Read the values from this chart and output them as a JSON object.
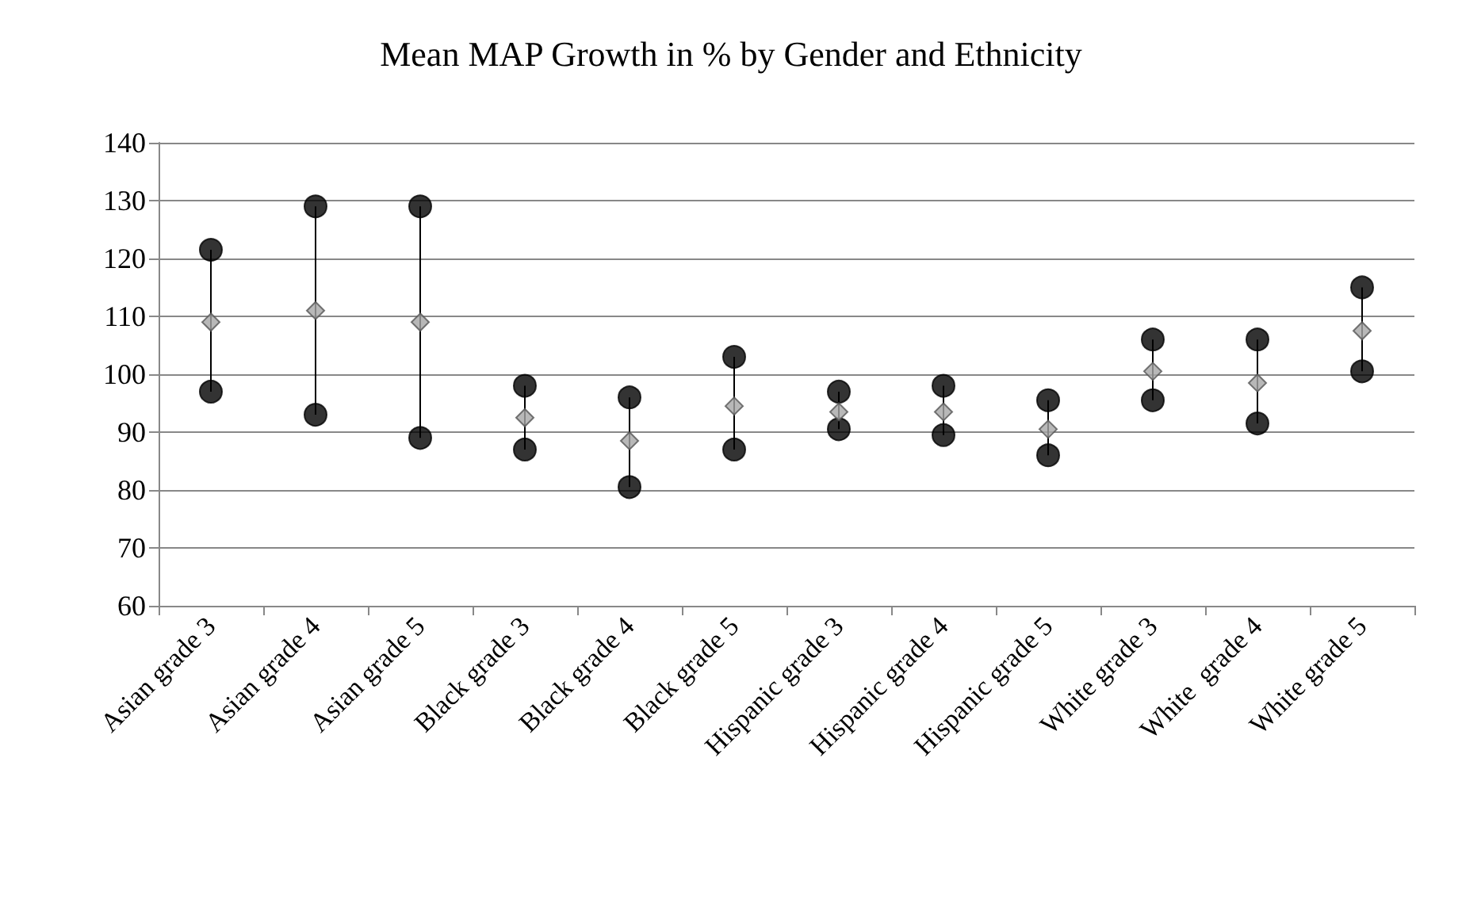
{
  "chart_data": {
    "type": "scatter",
    "title": "Mean MAP Growth in % by Gender and Ethnicity",
    "categories": [
      "Asian grade 3",
      "Asian grade 4",
      "Asian grade 5",
      "Black grade 3",
      "Black grade 4",
      "Black grade 5",
      "Hispanic grade 3",
      "Hispanic grade 4",
      "Hispanic grade 5",
      "White grade 3",
      "White  grade 4",
      "White grade 5"
    ],
    "series": [
      {
        "color": "#000000",
        "marker": "circle",
        "values": [
          121.5,
          129,
          129,
          98,
          96,
          103,
          97,
          98,
          95.5,
          106,
          106,
          115
        ]
      },
      {
        "color": "#000000",
        "marker": "circle",
        "values": [
          97,
          93,
          89,
          87,
          80.5,
          87,
          90.5,
          89.5,
          86,
          95.5,
          91.5,
          100.5
        ]
      },
      {
        "color": "#a6a6a6",
        "marker": "diamond",
        "values": [
          109,
          111,
          109,
          92.5,
          88.5,
          94.5,
          93.5,
          93.5,
          90.5,
          100.5,
          98.5,
          107.5
        ]
      }
    ],
    "ylim": [
      60,
      140
    ],
    "yticks": [
      60,
      70,
      80,
      90,
      100,
      110,
      120,
      130,
      140
    ],
    "grid": "y"
  }
}
